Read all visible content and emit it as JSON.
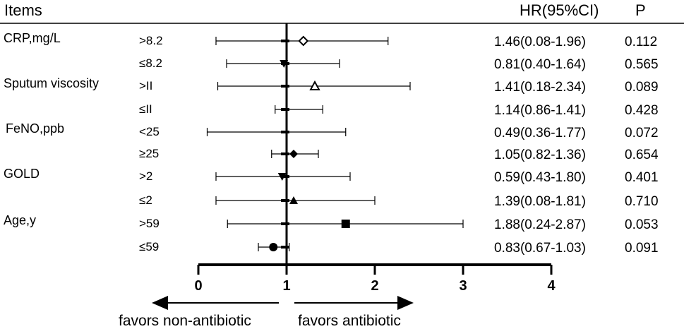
{
  "chart_data": {
    "type": "forest",
    "headers": {
      "items": "Items",
      "hr": "HR(95%CI)",
      "p": "P"
    },
    "x_axis": {
      "ticks": [
        0,
        1,
        2,
        3,
        4
      ],
      "range": [
        0,
        4
      ],
      "reference_line": 1
    },
    "favors": {
      "left": "favors non-antibiotic",
      "right": "favors antibiotic"
    },
    "groups": [
      {
        "name": "CRP,mg/L",
        "rows": [
          {
            "subgroup": ">8.2",
            "hr": 1.46,
            "lower": 0.08,
            "upper": 1.96,
            "hr_text": "1.46(0.08-1.96)",
            "p": "0.112",
            "marker": "diamond-open",
            "plot_point": 1.19,
            "plot_lower": 0.2,
            "plot_upper": 2.15
          },
          {
            "subgroup": "≤8.2",
            "hr": 0.81,
            "lower": 0.4,
            "upper": 1.64,
            "hr_text": "0.81(0.40-1.64)",
            "p": "0.565",
            "marker": "triangle-down-filled",
            "plot_point": 0.97,
            "plot_lower": 0.32,
            "plot_upper": 1.6
          }
        ]
      },
      {
        "name": "Sputum viscosity",
        "rows": [
          {
            "subgroup": ">II",
            "hr": 1.41,
            "lower": 0.18,
            "upper": 2.34,
            "hr_text": "1.41(0.18-2.34)",
            "p": "0.089",
            "marker": "triangle-up-open",
            "plot_point": 1.32,
            "plot_lower": 0.22,
            "plot_upper": 2.4
          },
          {
            "subgroup": "≤II",
            "hr": 1.14,
            "lower": 0.86,
            "upper": 1.41,
            "hr_text": "1.14(0.86-1.41)",
            "p": "0.428",
            "marker": "none",
            "plot_point": 1.0,
            "plot_lower": 0.87,
            "plot_upper": 1.41
          }
        ]
      },
      {
        "name": "FeNO,ppb",
        "rows": [
          {
            "subgroup": "<25",
            "hr": 0.49,
            "lower": 0.36,
            "upper": 1.77,
            "hr_text": "0.49(0.36-1.77)",
            "p": "0.072",
            "marker": "none",
            "plot_point": 0.97,
            "plot_lower": 0.1,
            "plot_upper": 1.67
          },
          {
            "subgroup": "≥25",
            "hr": 1.05,
            "lower": 0.82,
            "upper": 1.36,
            "hr_text": "1.05(0.82-1.36)",
            "p": "0.654",
            "marker": "diamond-filled",
            "plot_point": 1.08,
            "plot_lower": 0.83,
            "plot_upper": 1.36
          }
        ]
      },
      {
        "name": "GOLD",
        "rows": [
          {
            "subgroup": ">2",
            "hr": 0.59,
            "lower": 0.43,
            "upper": 1.8,
            "hr_text": "0.59(0.43-1.80)",
            "p": "0.401",
            "marker": "triangle-down-filled",
            "plot_point": 0.95,
            "plot_lower": 0.2,
            "plot_upper": 1.72
          },
          {
            "subgroup": "≤2",
            "hr": 1.39,
            "lower": 0.08,
            "upper": 1.81,
            "hr_text": "1.39(0.08-1.81)",
            "p": "0.710",
            "marker": "triangle-up-filled",
            "plot_point": 1.08,
            "plot_lower": 0.2,
            "plot_upper": 2.0
          }
        ]
      },
      {
        "name": "Age,y",
        "rows": [
          {
            "subgroup": ">59",
            "hr": 1.88,
            "lower": 0.24,
            "upper": 2.87,
            "hr_text": "1.88(0.24-2.87)",
            "p": "0.053",
            "marker": "square-filled",
            "plot_point": 1.67,
            "plot_lower": 0.33,
            "plot_upper": 3.0
          },
          {
            "subgroup": "≤59",
            "hr": 0.83,
            "lower": 0.67,
            "upper": 1.03,
            "hr_text": "0.83(0.67-1.03)",
            "p": "0.091",
            "marker": "circle-filled",
            "plot_point": 0.85,
            "plot_lower": 0.68,
            "plot_upper": 1.03
          }
        ]
      }
    ]
  }
}
